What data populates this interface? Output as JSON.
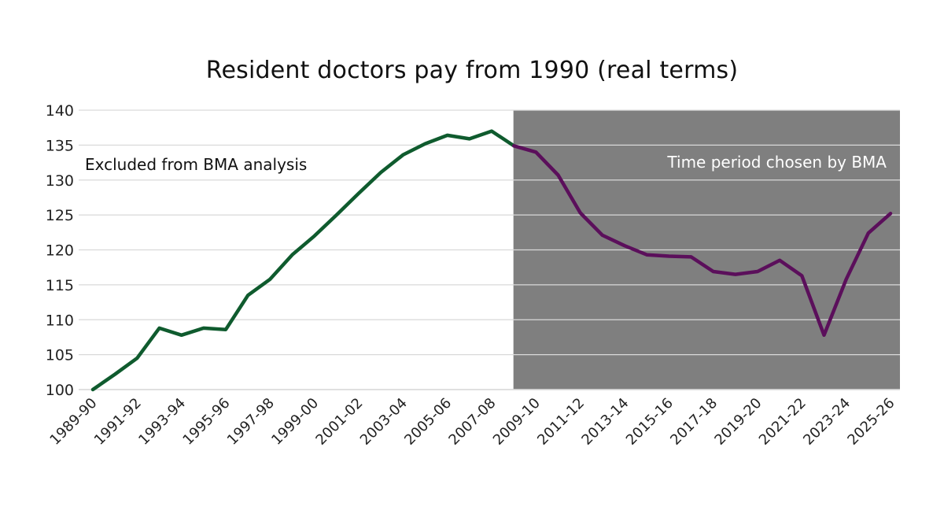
{
  "chart_data": {
    "type": "line",
    "title": "Resident doctors pay from 1990 (real terms)",
    "ylim": [
      100,
      140
    ],
    "yticks": [
      100,
      105,
      110,
      115,
      120,
      125,
      130,
      135,
      140
    ],
    "grid": true,
    "categories": [
      "1989-90",
      "1990-91",
      "1991-92",
      "1992-93",
      "1993-94",
      "1994-95",
      "1995-96",
      "1996-97",
      "1997-98",
      "1998-99",
      "1999-00",
      "2000-01",
      "2001-02",
      "2002-03",
      "2003-04",
      "2004-05",
      "2005-06",
      "2006-07",
      "2007-08",
      "2008-09",
      "2009-10",
      "2010-11",
      "2011-12",
      "2012-13",
      "2013-14",
      "2014-15",
      "2015-16",
      "2016-17",
      "2017-18",
      "2018-19",
      "2019-20",
      "2020-21",
      "2021-22",
      "2022-23",
      "2023-24",
      "2024-25",
      "2025-26"
    ],
    "tick_labels": [
      "1989-90",
      "1991-92",
      "1993-94",
      "1995-96",
      "1997-98",
      "1999-00",
      "2001-02",
      "2003-04",
      "2005-06",
      "2007-08",
      "2009-10",
      "2011-12",
      "2013-14",
      "2015-16",
      "2017-18",
      "2019-20",
      "2021-22",
      "2023-24",
      "2025-26"
    ],
    "values": [
      100.0,
      102.2,
      104.5,
      108.8,
      107.8,
      108.8,
      108.6,
      113.5,
      115.8,
      119.3,
      122.0,
      125.0,
      128.1,
      131.1,
      133.6,
      135.2,
      136.4,
      135.9,
      137.0,
      134.9,
      134.0,
      130.7,
      125.3,
      122.1,
      120.6,
      119.3,
      119.1,
      119.0,
      116.9,
      116.5,
      116.9,
      118.5,
      116.3,
      107.8,
      115.8,
      122.4,
      125.2
    ],
    "series": [
      {
        "color": "#0f5b2e",
        "from_category": "1989-90",
        "to_category": "2008-09"
      },
      {
        "color": "#5b0f5b",
        "from_category": "2008-09",
        "to_category": "2025-26"
      }
    ],
    "shaded_region": {
      "from_category": "2008-09",
      "to_category": "2025-26",
      "color": "#7f7f7f"
    },
    "annotations": {
      "excluded": "Excluded from BMA analysis",
      "chosen": "Time period chosen by BMA"
    }
  }
}
